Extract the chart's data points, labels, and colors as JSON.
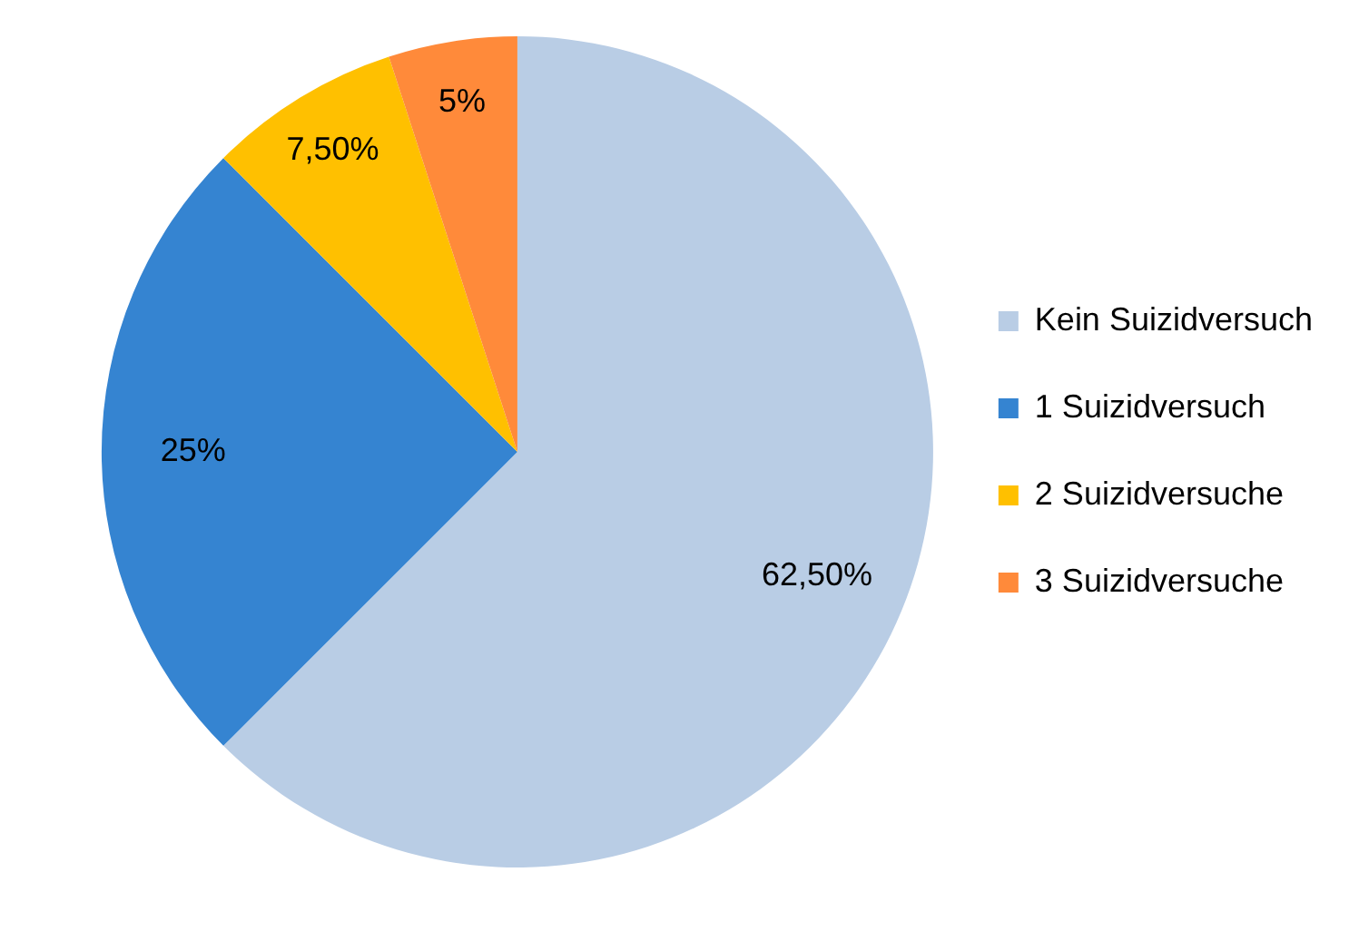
{
  "chart_data": {
    "type": "pie",
    "categories": [
      "Kein Suizidversuch",
      "1 Suizidversuch",
      "2 Suizidversuche",
      "3 Suizidversuche"
    ],
    "values": [
      62.5,
      25,
      7.5,
      5
    ],
    "colors": [
      "#b9cde5",
      "#3584d1",
      "#ffc000",
      "#ff8a3a"
    ],
    "value_labels": [
      "62,50%",
      "25%",
      "7,50%",
      "5%"
    ],
    "legend": "right"
  }
}
